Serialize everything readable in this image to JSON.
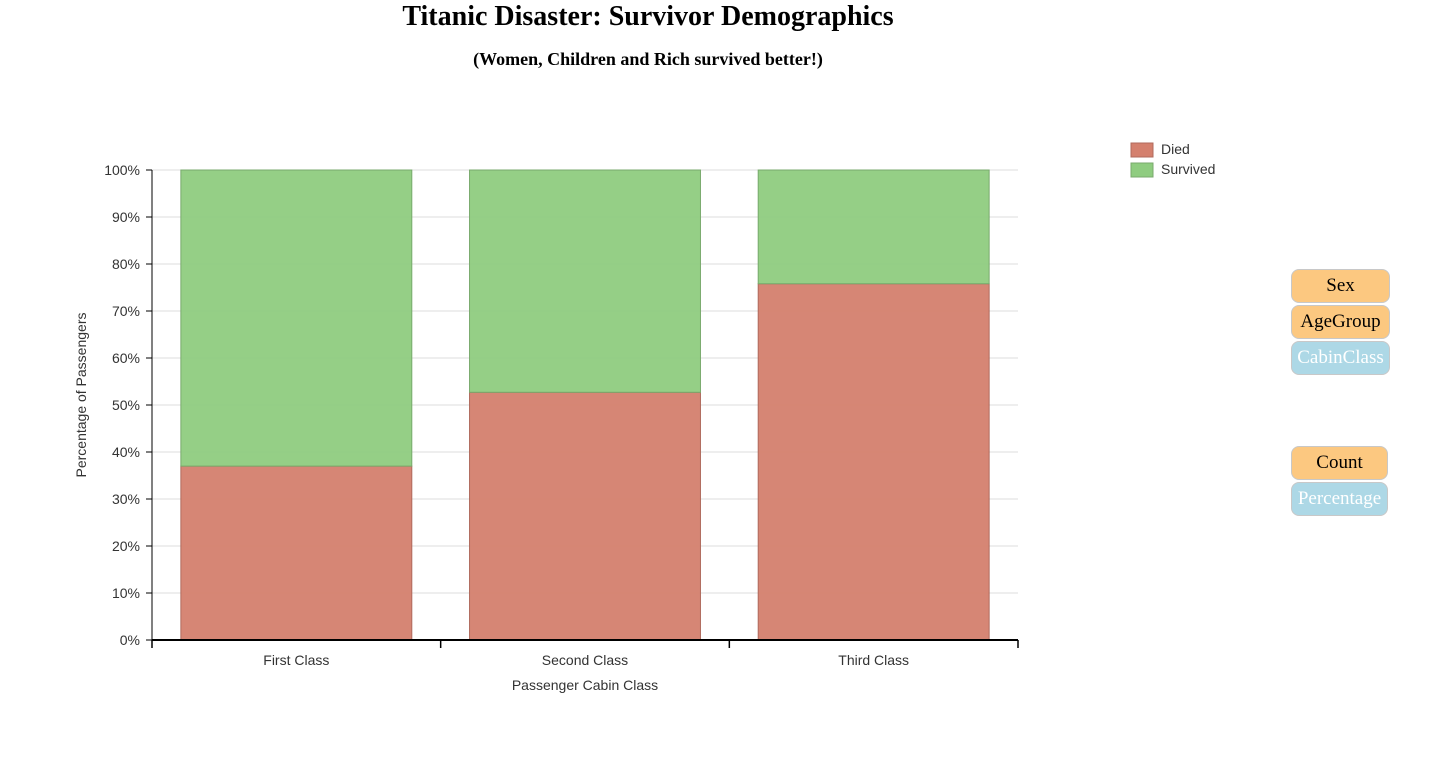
{
  "page": {
    "title": "Titanic Disaster: Survivor Demographics",
    "subtitle": "(Women, Children and Rich survived better!)"
  },
  "controls": {
    "group_by": [
      {
        "label": "Sex",
        "active": false
      },
      {
        "label": "AgeGroup",
        "active": false
      },
      {
        "label": "CabinClass",
        "active": true
      }
    ],
    "measure": [
      {
        "label": "Count",
        "active": false
      },
      {
        "label": "Percentage",
        "active": true
      }
    ]
  },
  "colors": {
    "died": "#d4806e",
    "survived": "#8fcc80",
    "button_inactive": "#fcc880",
    "button_active": "#add8e6"
  },
  "chart_data": {
    "type": "bar",
    "stacked": true,
    "title": "Titanic Disaster: Survivor Demographics",
    "subtitle": "(Women, Children and Rich survived better!)",
    "xlabel": "Passenger Cabin Class",
    "ylabel": "Percentage of Passengers",
    "categories": [
      "First Class",
      "Second Class",
      "Third Class"
    ],
    "series": [
      {
        "name": "Died",
        "values": [
          37,
          52.7,
          75.8
        ]
      },
      {
        "name": "Survived",
        "values": [
          63,
          47.3,
          24.2
        ]
      }
    ],
    "ylim": [
      0,
      100
    ],
    "yticks": [
      "0%",
      "10%",
      "20%",
      "30%",
      "40%",
      "50%",
      "60%",
      "70%",
      "80%",
      "90%",
      "100%"
    ],
    "grid": true,
    "legend": "top-right"
  }
}
